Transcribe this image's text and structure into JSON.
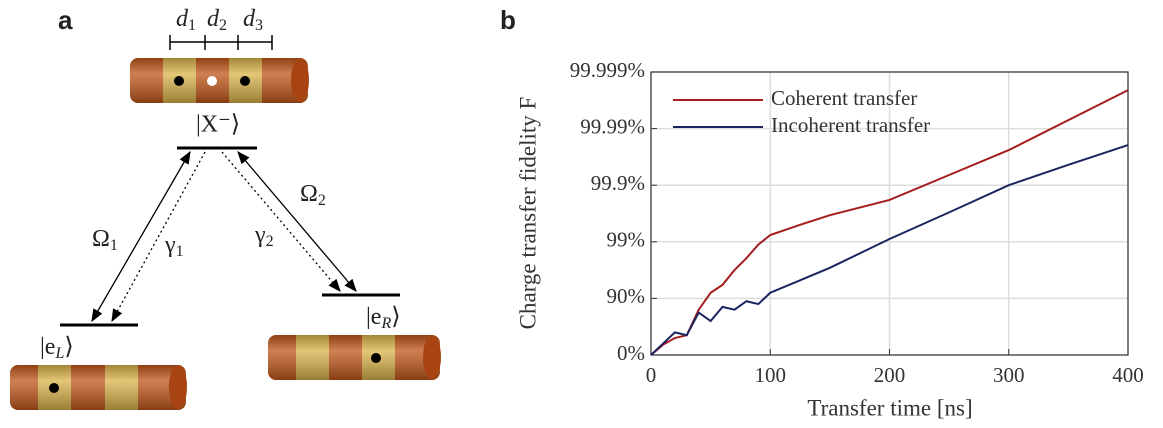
{
  "diagram": {
    "label": "a",
    "spacings": [
      {
        "text": "d",
        "sub": "1"
      },
      {
        "text": "d",
        "sub": "2"
      },
      {
        "text": "d",
        "sub": "3"
      }
    ],
    "states": {
      "excited": {
        "text": "|X⁻⟩"
      },
      "left": {
        "text": "|e",
        "sub": "L",
        "close": "⟩"
      },
      "right": {
        "text": "|e",
        "sub": "R",
        "close": "⟩"
      }
    },
    "couplings": [
      {
        "text": "Ω",
        "sub": "1"
      },
      {
        "text": "γ",
        "sub": "1"
      },
      {
        "text": "γ",
        "sub": "2"
      },
      {
        "text": "Ω",
        "sub": "2"
      }
    ]
  },
  "chart_data": {
    "type": "line",
    "panel_label": "b",
    "x_label": "Transfer time [ns]",
    "y_label": "Charge transfer fidelity F",
    "x": [
      0,
      10,
      20,
      30,
      40,
      50,
      60,
      70,
      80,
      90,
      100,
      125,
      150,
      200,
      250,
      300,
      350,
      400
    ],
    "series": [
      {
        "name": "Coherent transfer",
        "color": "#a51d1d",
        "values": [
          0,
          0.18,
          0.3,
          0.35,
          0.8,
          1.1,
          1.24,
          1.5,
          1.71,
          1.95,
          2.12,
          2.3,
          2.47,
          2.74,
          3.18,
          3.62,
          4.15,
          4.68
        ]
      },
      {
        "name": "Incoherent transfer",
        "color": "#1a2560",
        "values": [
          0,
          0.2,
          0.4,
          0.35,
          0.75,
          0.6,
          0.85,
          0.8,
          0.95,
          0.9,
          1.1,
          1.32,
          1.54,
          2.05,
          2.52,
          3.0,
          3.36,
          3.71
        ]
      }
    ],
    "xlim": [
      0,
      400
    ],
    "xticks": [
      0,
      100,
      200,
      300,
      400
    ],
    "ylim": [
      0,
      5
    ],
    "yticks": [
      {
        "value": 0,
        "label": "0%"
      },
      {
        "value": 1,
        "label": "90%"
      },
      {
        "value": 2,
        "label": "99%"
      },
      {
        "value": 3,
        "label": "99.9%"
      },
      {
        "value": 4,
        "label": "99.99%"
      },
      {
        "value": 5,
        "label": "99.999%"
      }
    ],
    "grid": true,
    "legend": "upper left"
  }
}
